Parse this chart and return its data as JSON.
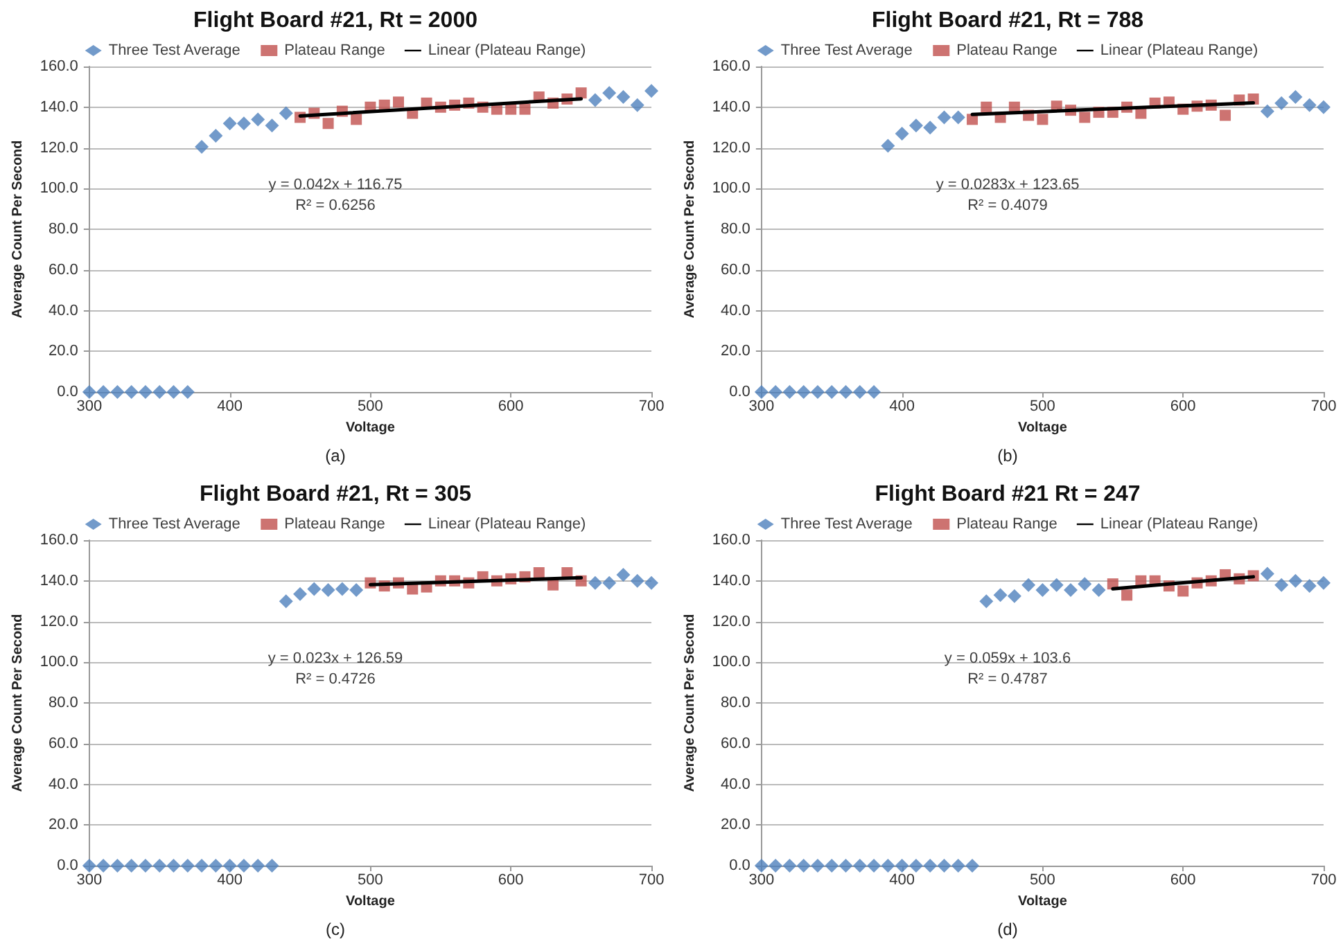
{
  "chart_data": [
    {
      "type": "scatter",
      "title": "Flight Board #21, Rt = 2000",
      "subtitle": "(a)",
      "xlabel": "Voltage",
      "ylabel": "Average Count Per Second",
      "annotations": [
        "y = 0.042x + 116.75",
        "R² = 0.6256"
      ],
      "xlim": [
        300,
        700
      ],
      "xticks": [
        300,
        400,
        500,
        600,
        700
      ],
      "ylim": [
        0,
        160
      ],
      "yticks": [
        {
          "value": 0,
          "label": "0.0"
        },
        {
          "value": 20,
          "label": "20.0"
        },
        {
          "value": 40,
          "label": "40.0"
        },
        {
          "value": 60,
          "label": "60.0"
        },
        {
          "value": 80,
          "label": "80.0"
        },
        {
          "value": 100,
          "label": "100.0"
        },
        {
          "value": 120,
          "label": "120.0"
        },
        {
          "value": 140,
          "label": "140.0"
        },
        {
          "value": 160,
          "label": "160.0"
        }
      ],
      "grid": "y",
      "legend": "top",
      "series": [
        {
          "name": "Three Test Average",
          "color": "#4f81bd",
          "marker": "diamond",
          "x": [
            300,
            310,
            320,
            330,
            340,
            350,
            360,
            370,
            380,
            390,
            400,
            410,
            420,
            430,
            440,
            660,
            670,
            680,
            690,
            700
          ],
          "values": [
            0,
            0,
            0,
            0,
            0,
            0,
            0,
            0,
            120.5,
            126,
            132,
            132,
            134,
            131,
            137,
            143.5,
            147,
            145,
            141,
            148
          ]
        },
        {
          "name": "Plateau Range",
          "color": "#c0504d",
          "marker": "square",
          "x": [
            450,
            460,
            470,
            480,
            490,
            500,
            510,
            520,
            530,
            540,
            550,
            560,
            570,
            580,
            590,
            600,
            610,
            620,
            630,
            640,
            650
          ],
          "values": [
            135,
            137,
            132,
            138,
            134,
            140,
            141,
            142.5,
            137,
            142,
            140,
            141,
            142,
            140,
            139,
            139,
            139,
            145,
            142,
            144,
            147
          ]
        },
        {
          "name": "Linear (Plateau Range)",
          "type": "line",
          "color": "#000000",
          "marker": "none",
          "x": [
            450,
            650
          ],
          "values": [
            135.7,
            144.1
          ]
        }
      ]
    },
    {
      "type": "scatter",
      "title": "Flight Board #21, Rt = 788",
      "subtitle": "(b)",
      "xlabel": "Voltage",
      "ylabel": "Average Count Per Second",
      "annotations": [
        "y = 0.0283x + 123.65",
        "R² = 0.4079"
      ],
      "xlim": [
        300,
        700
      ],
      "xticks": [
        300,
        400,
        500,
        600,
        700
      ],
      "ylim": [
        0,
        160
      ],
      "yticks": [
        {
          "value": 0,
          "label": "0.0"
        },
        {
          "value": 20,
          "label": "20.0"
        },
        {
          "value": 40,
          "label": "40.0"
        },
        {
          "value": 60,
          "label": "60.0"
        },
        {
          "value": 80,
          "label": "80.0"
        },
        {
          "value": 100,
          "label": "100.0"
        },
        {
          "value": 120,
          "label": "120.0"
        },
        {
          "value": 140,
          "label": "140.0"
        },
        {
          "value": 160,
          "label": "160.0"
        }
      ],
      "grid": "y",
      "legend": "top",
      "series": [
        {
          "name": "Three Test Average",
          "color": "#4f81bd",
          "marker": "diamond",
          "x": [
            300,
            310,
            320,
            330,
            340,
            350,
            360,
            370,
            380,
            390,
            400,
            410,
            420,
            430,
            440,
            660,
            670,
            680,
            690,
            700
          ],
          "values": [
            0,
            0,
            0,
            0,
            0,
            0,
            0,
            0,
            0,
            121,
            127,
            131,
            130,
            135,
            135,
            138,
            142,
            145,
            141,
            140
          ]
        },
        {
          "name": "Plateau Range",
          "color": "#c0504d",
          "marker": "square",
          "x": [
            450,
            460,
            470,
            480,
            490,
            500,
            510,
            520,
            530,
            540,
            550,
            560,
            570,
            580,
            590,
            600,
            610,
            620,
            630,
            640,
            650
          ],
          "values": [
            134,
            140,
            135,
            140,
            136,
            134,
            140.5,
            138.5,
            135,
            137.5,
            137.5,
            140,
            137,
            142,
            142.5,
            139,
            140.5,
            141,
            136,
            143.5,
            144
          ]
        },
        {
          "name": "Linear (Plateau Range)",
          "type": "line",
          "color": "#000000",
          "marker": "none",
          "x": [
            450,
            650
          ],
          "values": [
            136.4,
            142.1
          ]
        }
      ]
    },
    {
      "type": "scatter",
      "title": "Flight Board #21, Rt = 305",
      "subtitle": "(c)",
      "xlabel": "Voltage",
      "ylabel": "Average Count Per Second",
      "annotations": [
        "y = 0.023x + 126.59",
        "R² = 0.4726"
      ],
      "xlim": [
        300,
        700
      ],
      "xticks": [
        300,
        400,
        500,
        600,
        700
      ],
      "ylim": [
        0,
        160
      ],
      "yticks": [
        {
          "value": 0,
          "label": "0.0"
        },
        {
          "value": 20,
          "label": "20.0"
        },
        {
          "value": 40,
          "label": "40.0"
        },
        {
          "value": 60,
          "label": "60.0"
        },
        {
          "value": 80,
          "label": "80.0"
        },
        {
          "value": 100,
          "label": "100.0"
        },
        {
          "value": 120,
          "label": "120.0"
        },
        {
          "value": 140,
          "label": "140.0"
        },
        {
          "value": 160,
          "label": "160.0"
        }
      ],
      "grid": "y",
      "legend": "top",
      "series": [
        {
          "name": "Three Test Average",
          "color": "#4f81bd",
          "marker": "diamond",
          "x": [
            300,
            310,
            320,
            330,
            340,
            350,
            360,
            370,
            380,
            390,
            400,
            410,
            420,
            430,
            440,
            450,
            460,
            470,
            480,
            490,
            660,
            670,
            680,
            690,
            700
          ],
          "values": [
            0,
            0,
            0,
            0,
            0,
            0,
            0,
            0,
            0,
            0,
            0,
            0,
            0,
            0,
            130,
            133.5,
            136,
            135.5,
            136,
            135.5,
            139,
            139,
            143,
            140,
            139
          ]
        },
        {
          "name": "Plateau Range",
          "color": "#c0504d",
          "marker": "square",
          "x": [
            500,
            510,
            520,
            530,
            540,
            550,
            560,
            570,
            580,
            590,
            600,
            610,
            620,
            630,
            640,
            650
          ],
          "values": [
            139,
            137.5,
            139,
            136,
            137,
            140,
            140,
            139,
            142,
            140,
            141,
            142,
            144,
            138,
            144,
            140
          ]
        },
        {
          "name": "Linear (Plateau Range)",
          "type": "line",
          "color": "#000000",
          "marker": "none",
          "x": [
            500,
            650
          ],
          "values": [
            138.1,
            141.5
          ]
        }
      ]
    },
    {
      "type": "scatter",
      "title": "Flight Board #21 Rt = 247",
      "subtitle": "(d)",
      "xlabel": "Voltage",
      "ylabel": "Average Count Per Second",
      "annotations": [
        "y = 0.059x + 103.6",
        "R² = 0.4787"
      ],
      "xlim": [
        300,
        700
      ],
      "xticks": [
        300,
        400,
        500,
        600,
        700
      ],
      "ylim": [
        0,
        160
      ],
      "yticks": [
        {
          "value": 0,
          "label": "0.0"
        },
        {
          "value": 20,
          "label": "20.0"
        },
        {
          "value": 40,
          "label": "40.0"
        },
        {
          "value": 60,
          "label": "60.0"
        },
        {
          "value": 80,
          "label": "80.0"
        },
        {
          "value": 100,
          "label": "100.0"
        },
        {
          "value": 120,
          "label": "120.0"
        },
        {
          "value": 140,
          "label": "140.0"
        },
        {
          "value": 160,
          "label": "160.0"
        }
      ],
      "grid": "y",
      "legend": "top",
      "series": [
        {
          "name": "Three Test Average",
          "color": "#4f81bd",
          "marker": "diamond",
          "x": [
            300,
            310,
            320,
            330,
            340,
            350,
            360,
            370,
            380,
            390,
            400,
            410,
            420,
            430,
            440,
            450,
            460,
            470,
            480,
            490,
            500,
            510,
            520,
            530,
            540,
            660,
            670,
            680,
            690,
            700
          ],
          "values": [
            0,
            0,
            0,
            0,
            0,
            0,
            0,
            0,
            0,
            0,
            0,
            0,
            0,
            0,
            0,
            0,
            130,
            133,
            132.5,
            138,
            135.5,
            138,
            135.5,
            138.5,
            135.5,
            143.5,
            138,
            140,
            137.5,
            139
          ]
        },
        {
          "name": "Plateau Range",
          "color": "#c0504d",
          "marker": "square",
          "x": [
            550,
            560,
            570,
            580,
            590,
            600,
            610,
            620,
            630,
            640,
            650
          ],
          "values": [
            138.5,
            133,
            140,
            140,
            137.5,
            135,
            139,
            140,
            143,
            141,
            142.5
          ]
        },
        {
          "name": "Linear (Plateau Range)",
          "type": "line",
          "color": "#000000",
          "marker": "none",
          "x": [
            550,
            650
          ],
          "values": [
            136.1,
            142
          ]
        }
      ]
    }
  ]
}
